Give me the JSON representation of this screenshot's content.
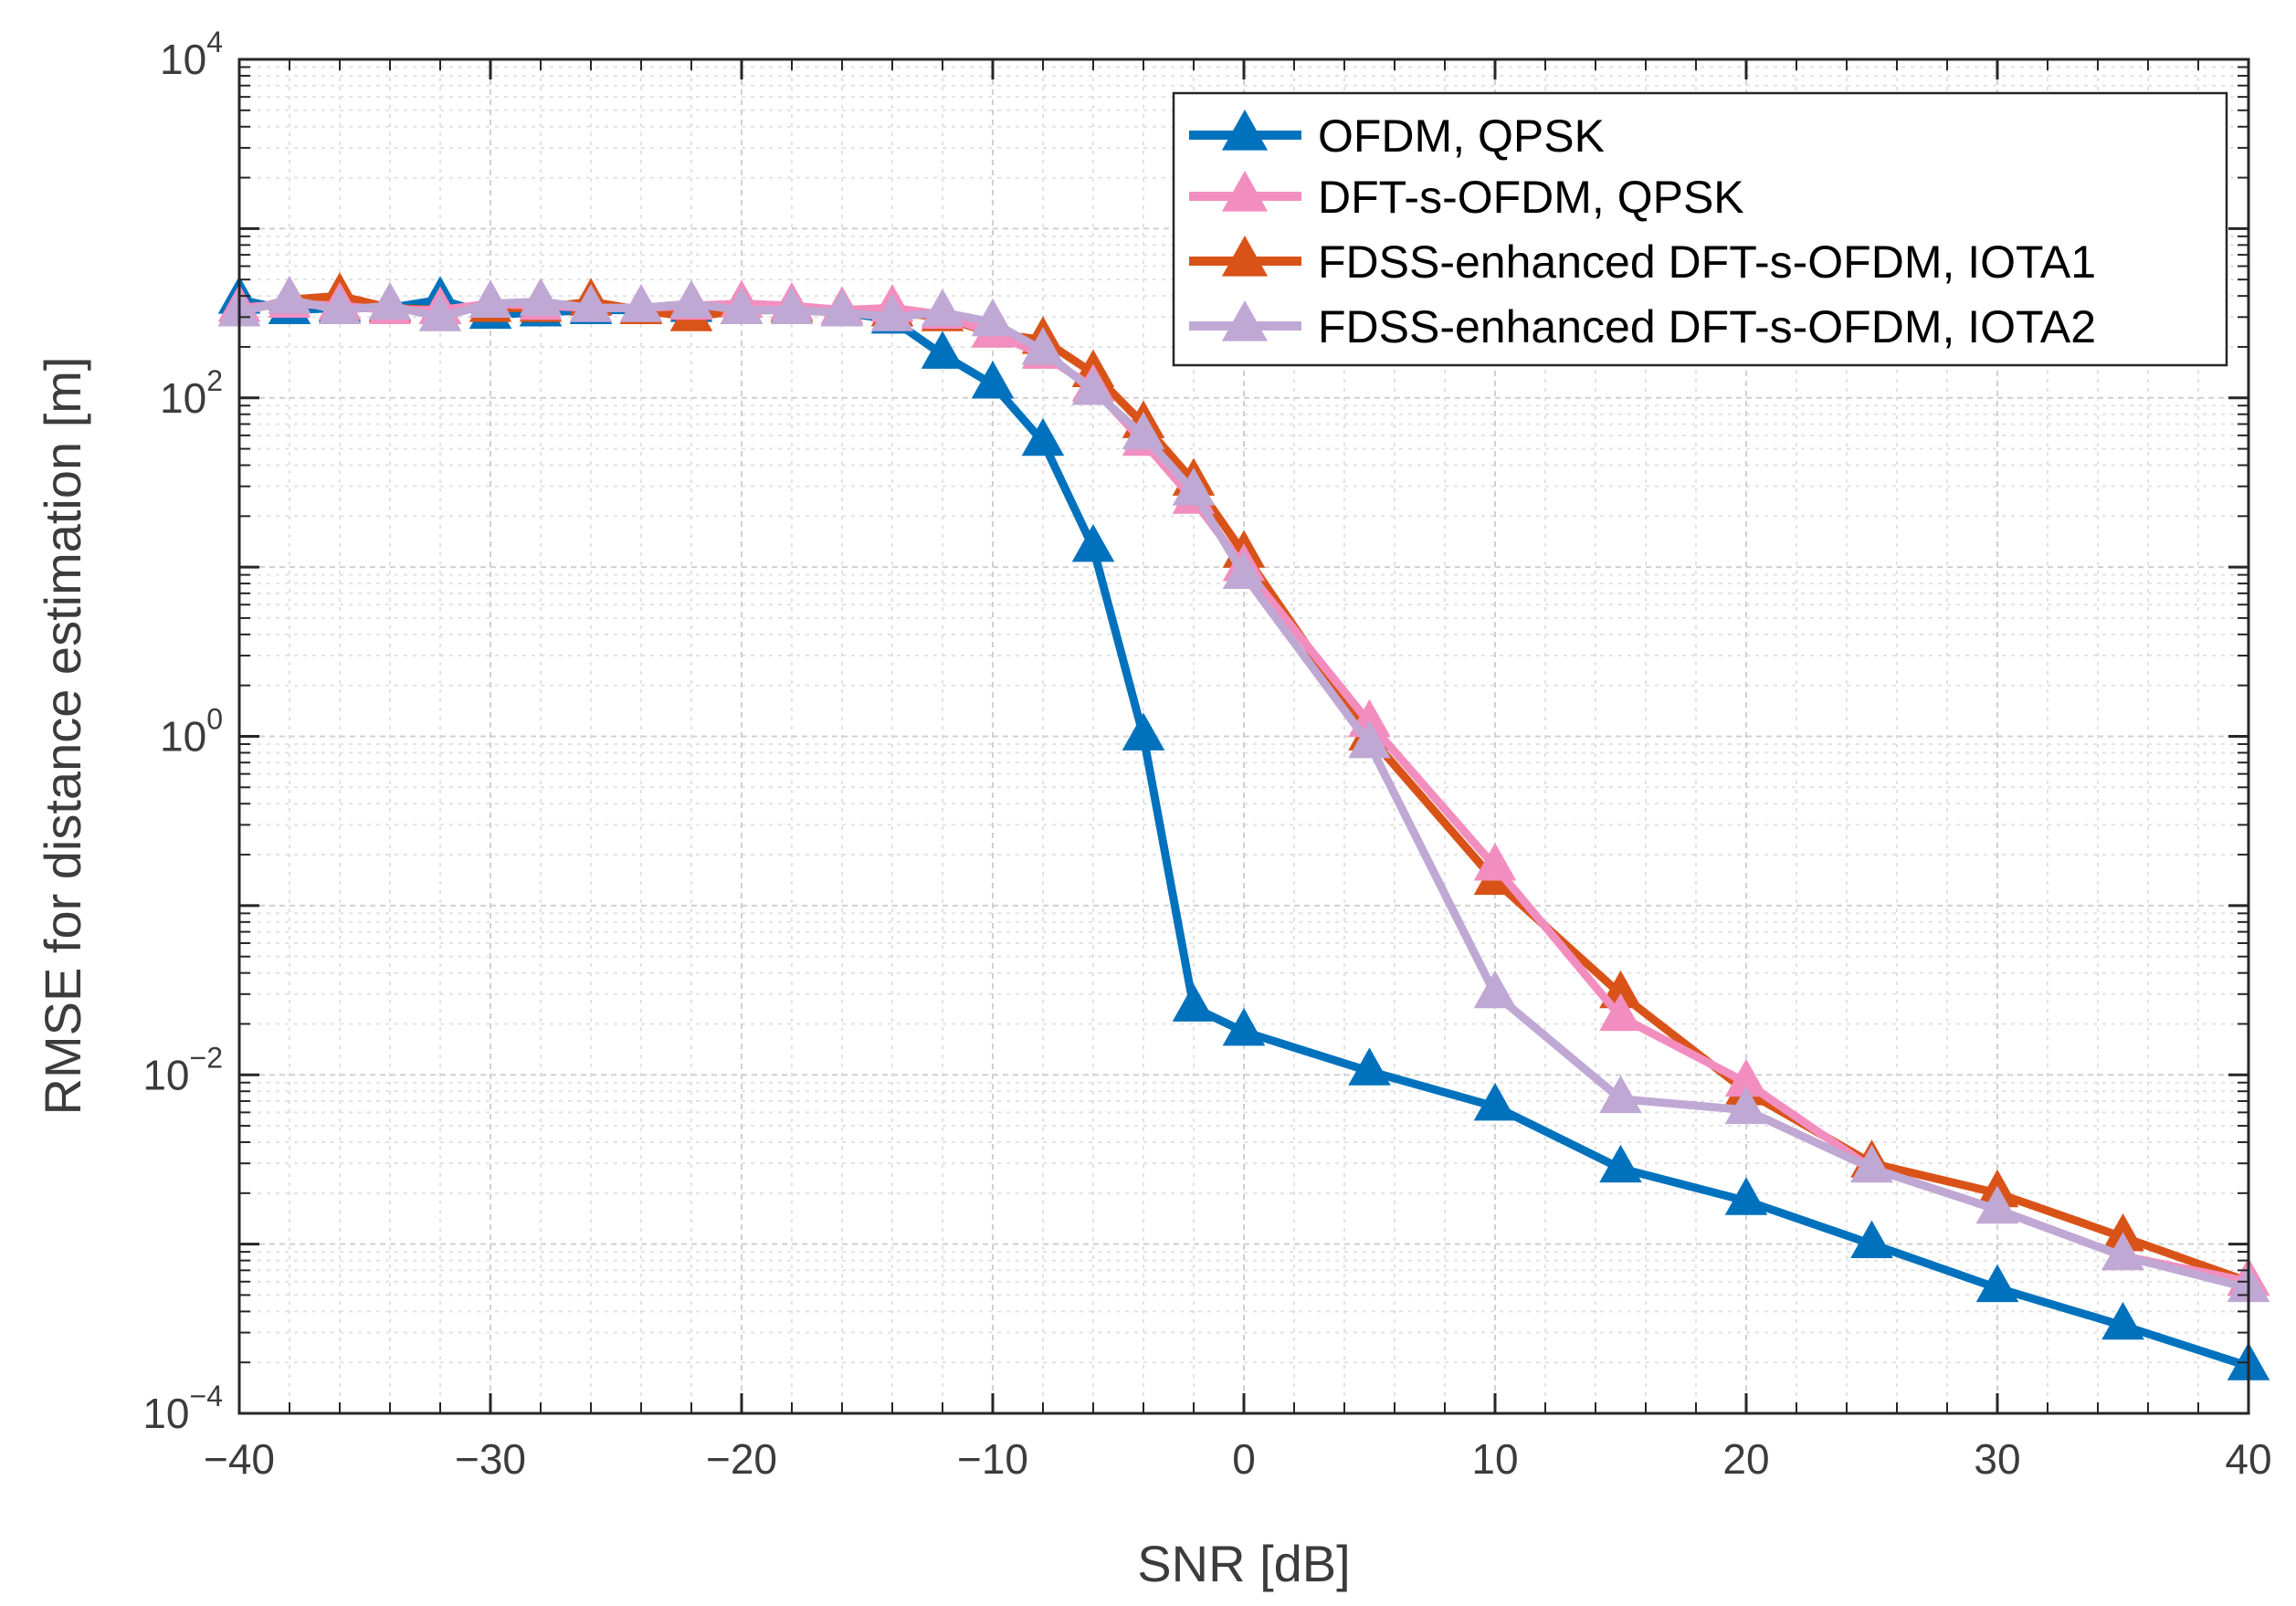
{
  "chart_data": {
    "type": "line",
    "xlabel": "SNR [dB]",
    "ylabel": "RMSE for distance estimation [m]",
    "xlim": [
      -40,
      40
    ],
    "ylim": [
      0.0001,
      10000
    ],
    "yscale": "log",
    "grid": true,
    "legend_position": "top-right",
    "x_ticks": [
      {
        "value": -40,
        "label": "−40"
      },
      {
        "value": -30,
        "label": "−30"
      },
      {
        "value": -20,
        "label": "−20"
      },
      {
        "value": -10,
        "label": "−10"
      },
      {
        "value": 0,
        "label": "0"
      },
      {
        "value": 10,
        "label": "10"
      },
      {
        "value": 20,
        "label": "20"
      },
      {
        "value": 30,
        "label": "30"
      },
      {
        "value": 40,
        "label": "40"
      }
    ],
    "y_ticks": [
      {
        "value": 0.0001,
        "base": "10",
        "exp": "−4"
      },
      {
        "value": 0.01,
        "base": "10",
        "exp": "−2"
      },
      {
        "value": 1,
        "base": "10",
        "exp": "0"
      },
      {
        "value": 100,
        "base": "10",
        "exp": "2"
      },
      {
        "value": 10000,
        "base": "10",
        "exp": "4"
      }
    ],
    "series": [
      {
        "name": "OFDM, QPSK",
        "color": "#0072BD",
        "x": [
          -40,
          -38,
          -36,
          -34,
          -32,
          -30,
          -28,
          -26,
          -24,
          -22,
          -20,
          -18,
          -16,
          -14,
          -12,
          -10,
          -8,
          -6,
          -4,
          -2,
          0,
          5,
          10,
          15,
          20,
          25,
          30,
          35,
          40
        ],
        "y": [
          380,
          330,
          340,
          340,
          380,
          310,
          320,
          330,
          330,
          340,
          330,
          330,
          320,
          290,
          180,
          120,
          55,
          13,
          1.0,
          0.025,
          0.018,
          0.0105,
          0.0065,
          0.0028,
          0.0018,
          0.001,
          0.00055,
          0.00033,
          0.00019
        ]
      },
      {
        "name": "DFT-s-OFDM, QPSK",
        "color": "#F28EBF",
        "x": [
          -40,
          -38,
          -36,
          -34,
          -32,
          -30,
          -28,
          -26,
          -24,
          -22,
          -20,
          -18,
          -16,
          -14,
          -12,
          -10,
          -8,
          -6,
          -4,
          -2,
          0,
          5,
          10,
          15,
          20,
          25,
          30,
          35,
          40
        ],
        "y": [
          340,
          360,
          350,
          330,
          330,
          360,
          350,
          340,
          340,
          350,
          360,
          350,
          330,
          340,
          310,
          240,
          180,
          115,
          55,
          25,
          10,
          1.2,
          0.17,
          0.022,
          0.009,
          0.0028,
          0.0016,
          0.00085,
          0.0006
        ]
      },
      {
        "name": "FDSS-enhanced DFT-s-OFDM, IOTA1",
        "color": "#D95319",
        "x": [
          -40,
          -38,
          -36,
          -34,
          -32,
          -30,
          -28,
          -26,
          -24,
          -22,
          -20,
          -18,
          -16,
          -14,
          -12,
          -10,
          -8,
          -6,
          -4,
          -2,
          0,
          5,
          10,
          15,
          20,
          25,
          30,
          35,
          40
        ],
        "y": [
          320,
          380,
          400,
          340,
          330,
          340,
          340,
          370,
          330,
          300,
          330,
          340,
          330,
          320,
          300,
          240,
          220,
          140,
          70,
          32,
          12,
          1.0,
          0.14,
          0.03,
          0.008,
          0.003,
          0.002,
          0.0011,
          0.0006
        ]
      },
      {
        "name": "FDSS-enhanced DFT-s-OFDM, IOTA2",
        "color": "#C0A8D4",
        "x": [
          -40,
          -38,
          -36,
          -34,
          -32,
          -30,
          -28,
          -26,
          -24,
          -22,
          -20,
          -18,
          -16,
          -14,
          -12,
          -10,
          -8,
          -6,
          -4,
          -2,
          0,
          5,
          10,
          15,
          20,
          25,
          30,
          35,
          40
        ],
        "y": [
          320,
          380,
          330,
          350,
          300,
          360,
          370,
          340,
          340,
          360,
          330,
          330,
          320,
          300,
          320,
          280,
          190,
          110,
          60,
          28,
          9,
          0.9,
          0.03,
          0.0072,
          0.0062,
          0.0028,
          0.0016,
          0.00085,
          0.00055
        ]
      }
    ]
  }
}
